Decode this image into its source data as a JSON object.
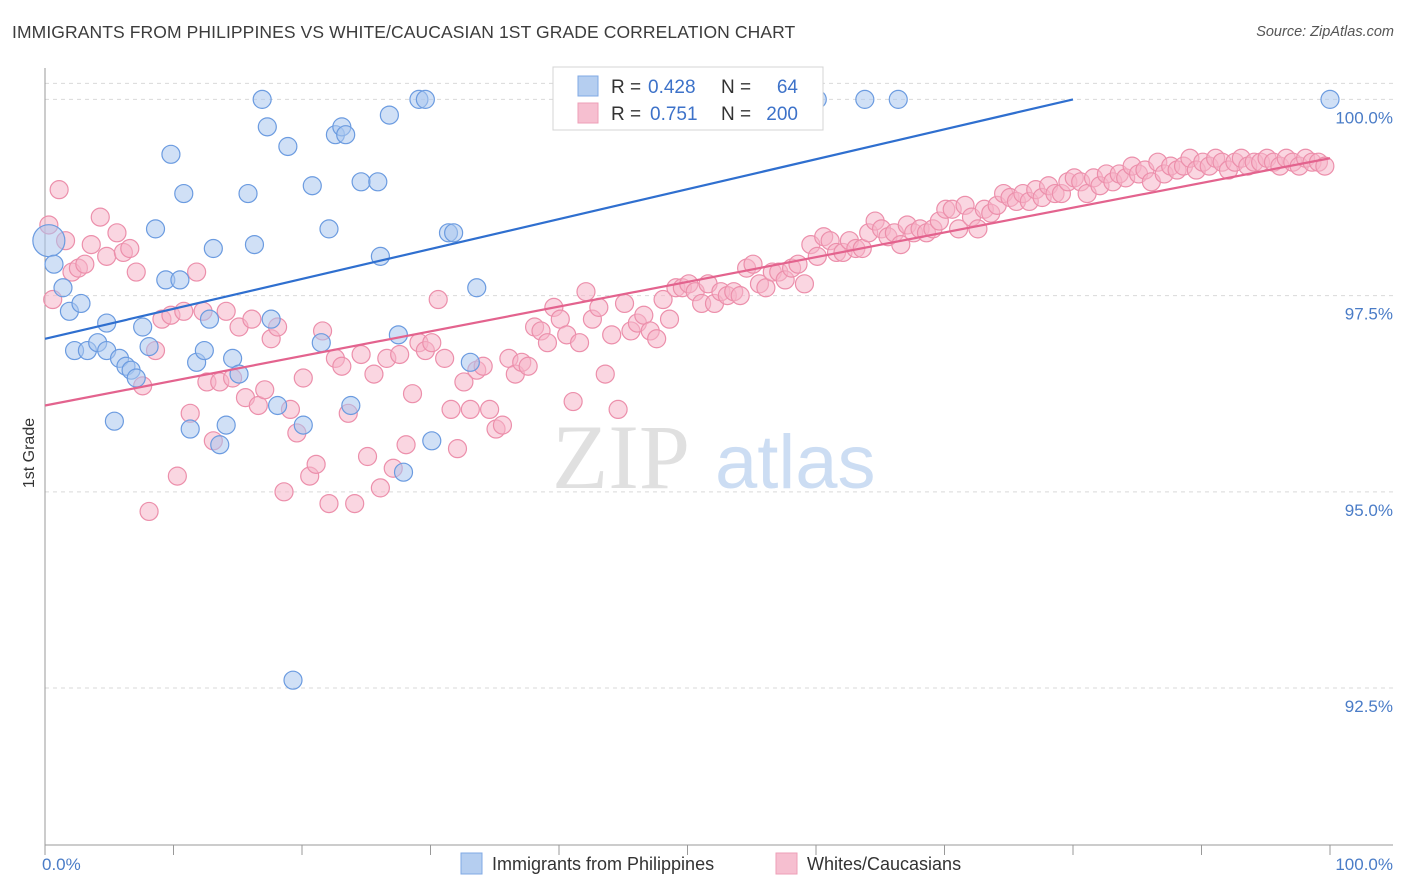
{
  "header": {
    "title": "IMMIGRANTS FROM PHILIPPINES VS WHITE/CAUCASIAN 1ST GRADE CORRELATION CHART",
    "source": "Source: ZipAtlas.com"
  },
  "watermark": {
    "zip": "ZIP",
    "atlas": "atlas"
  },
  "legend": {
    "rows": [
      {
        "r_label": "R =",
        "r_value": "0.428",
        "n_label": "N =",
        "n_value": "64"
      },
      {
        "r_label": "R =",
        "r_value": "0.751",
        "n_label": "N =",
        "n_value": "200"
      }
    ]
  },
  "colors": {
    "series_a_fill": "#a9c6ee",
    "series_a_stroke": "#6b9be0",
    "series_a_line": "#2f6fcf",
    "series_b_fill": "#f5b4c8",
    "series_b_stroke": "#ec8fab",
    "series_b_line": "#e3638e",
    "tick": "#4a7cc7",
    "grid": "#d9d9d9"
  },
  "chart_data": {
    "type": "scatter",
    "title": "IMMIGRANTS FROM PHILIPPINES VS WHITE/CAUCASIAN 1ST GRADE CORRELATION CHART",
    "xlabel": "",
    "ylabel": "1st Grade",
    "xlim": [
      0,
      100
    ],
    "ylim": [
      90.5,
      100.4
    ],
    "x_tick_labels": [
      "0.0%",
      "100.0%"
    ],
    "y_ticks": [
      92.5,
      95.0,
      97.5,
      100.0
    ],
    "y_tick_labels": [
      "92.5%",
      "95.0%",
      "97.5%",
      "100.0%"
    ],
    "grid": true,
    "legend_position": "bottom",
    "series": [
      {
        "name": "Immigrants from Philippines",
        "r": 0.428,
        "n": 64,
        "trend": {
          "x0": 0,
          "y0": 96.95,
          "x1": 80,
          "y1": 100.0
        },
        "points": [
          [
            0.3,
            98.2
          ],
          [
            0.7,
            97.9
          ],
          [
            1.4,
            97.6
          ],
          [
            1.9,
            97.3
          ],
          [
            2.3,
            96.8
          ],
          [
            2.8,
            97.4
          ],
          [
            3.3,
            96.8
          ],
          [
            4.1,
            96.9
          ],
          [
            4.8,
            96.8
          ],
          [
            4.8,
            97.15
          ],
          [
            5.4,
            95.9
          ],
          [
            5.8,
            96.7
          ],
          [
            6.3,
            96.6
          ],
          [
            6.7,
            96.55
          ],
          [
            7.1,
            96.45
          ],
          [
            7.6,
            97.1
          ],
          [
            8.1,
            96.85
          ],
          [
            8.6,
            98.35
          ],
          [
            9.4,
            97.7
          ],
          [
            9.8,
            99.3
          ],
          [
            10.5,
            97.7
          ],
          [
            10.8,
            98.8
          ],
          [
            11.3,
            95.8
          ],
          [
            11.8,
            96.65
          ],
          [
            12.4,
            96.8
          ],
          [
            12.8,
            97.2
          ],
          [
            13.1,
            98.1
          ],
          [
            13.6,
            95.6
          ],
          [
            14.1,
            95.85
          ],
          [
            14.6,
            96.7
          ],
          [
            15.1,
            96.5
          ],
          [
            15.8,
            98.8
          ],
          [
            16.3,
            98.15
          ],
          [
            16.9,
            100.0
          ],
          [
            17.3,
            99.65
          ],
          [
            17.6,
            97.2
          ],
          [
            18.1,
            96.1
          ],
          [
            18.9,
            99.4
          ],
          [
            19.3,
            92.6
          ],
          [
            20.1,
            95.85
          ],
          [
            20.8,
            98.9
          ],
          [
            21.5,
            96.9
          ],
          [
            22.1,
            98.35
          ],
          [
            22.6,
            99.55
          ],
          [
            23.1,
            99.65
          ],
          [
            23.4,
            99.55
          ],
          [
            23.8,
            96.1
          ],
          [
            24.6,
            98.95
          ],
          [
            25.9,
            98.95
          ],
          [
            26.1,
            98.0
          ],
          [
            26.8,
            99.8
          ],
          [
            27.5,
            97.0
          ],
          [
            27.9,
            95.25
          ],
          [
            29.1,
            100.0
          ],
          [
            29.6,
            100.0
          ],
          [
            30.1,
            95.65
          ],
          [
            31.4,
            98.3
          ],
          [
            31.8,
            98.3
          ],
          [
            33.1,
            96.65
          ],
          [
            33.6,
            97.6
          ],
          [
            60.1,
            100.0
          ],
          [
            63.8,
            100.0
          ],
          [
            66.4,
            100.0
          ],
          [
            100,
            100.0
          ]
        ]
      },
      {
        "name": "Whites/Caucasians",
        "r": 0.751,
        "n": 200,
        "trend": {
          "x0": 0,
          "y0": 96.1,
          "x1": 100,
          "y1": 99.25
        },
        "points": [
          [
            0.3,
            98.4
          ],
          [
            0.6,
            97.45
          ],
          [
            1.1,
            98.85
          ],
          [
            1.6,
            98.2
          ],
          [
            2.1,
            97.8
          ],
          [
            2.6,
            97.85
          ],
          [
            3.1,
            97.9
          ],
          [
            3.6,
            98.15
          ],
          [
            4.3,
            98.5
          ],
          [
            4.8,
            98.0
          ],
          [
            5.6,
            98.3
          ],
          [
            6.1,
            98.05
          ],
          [
            6.6,
            98.1
          ],
          [
            7.1,
            97.8
          ],
          [
            7.6,
            96.35
          ],
          [
            8.1,
            94.75
          ],
          [
            8.6,
            96.8
          ],
          [
            9.1,
            97.2
          ],
          [
            9.8,
            97.25
          ],
          [
            10.3,
            95.2
          ],
          [
            10.8,
            97.3
          ],
          [
            11.3,
            96.0
          ],
          [
            11.8,
            97.8
          ],
          [
            12.3,
            97.3
          ],
          [
            12.6,
            96.4
          ],
          [
            13.1,
            95.65
          ],
          [
            13.6,
            96.4
          ],
          [
            14.1,
            97.3
          ],
          [
            14.6,
            96.45
          ],
          [
            15.1,
            97.1
          ],
          [
            15.6,
            96.2
          ],
          [
            16.1,
            97.2
          ],
          [
            16.6,
            96.1
          ],
          [
            17.1,
            96.3
          ],
          [
            17.6,
            96.95
          ],
          [
            18.1,
            97.1
          ],
          [
            18.6,
            95.0
          ],
          [
            19.1,
            96.05
          ],
          [
            19.6,
            95.75
          ],
          [
            20.1,
            96.45
          ],
          [
            20.6,
            95.2
          ],
          [
            21.1,
            95.35
          ],
          [
            21.6,
            97.05
          ],
          [
            22.1,
            94.85
          ],
          [
            22.6,
            96.7
          ],
          [
            23.1,
            96.6
          ],
          [
            23.6,
            96.0
          ],
          [
            24.1,
            94.85
          ],
          [
            24.6,
            96.75
          ],
          [
            25.1,
            95.45
          ],
          [
            25.6,
            96.5
          ],
          [
            26.1,
            95.05
          ],
          [
            26.6,
            96.7
          ],
          [
            27.1,
            95.3
          ],
          [
            27.6,
            96.75
          ],
          [
            28.1,
            95.6
          ],
          [
            28.6,
            96.25
          ],
          [
            29.1,
            96.9
          ],
          [
            29.6,
            96.8
          ],
          [
            30.1,
            96.9
          ],
          [
            30.6,
            97.45
          ],
          [
            31.1,
            96.7
          ],
          [
            31.6,
            96.05
          ],
          [
            32.1,
            95.55
          ],
          [
            32.6,
            96.4
          ],
          [
            33.1,
            96.05
          ],
          [
            33.6,
            96.55
          ],
          [
            34.1,
            96.6
          ],
          [
            34.6,
            96.05
          ],
          [
            35.1,
            95.8
          ],
          [
            35.6,
            95.85
          ],
          [
            36.1,
            96.7
          ],
          [
            36.6,
            96.5
          ],
          [
            37.1,
            96.65
          ],
          [
            37.6,
            96.6
          ],
          [
            38.1,
            97.1
          ],
          [
            38.6,
            97.05
          ],
          [
            39.1,
            96.9
          ],
          [
            39.6,
            97.35
          ],
          [
            40.1,
            97.2
          ],
          [
            40.6,
            97.0
          ],
          [
            41.1,
            96.15
          ],
          [
            41.6,
            96.9
          ],
          [
            42.1,
            97.55
          ],
          [
            42.6,
            97.2
          ],
          [
            43.1,
            97.35
          ],
          [
            43.6,
            96.5
          ],
          [
            44.1,
            97.0
          ],
          [
            44.6,
            96.05
          ],
          [
            45.1,
            97.4
          ],
          [
            45.6,
            97.05
          ],
          [
            46.1,
            97.15
          ],
          [
            46.6,
            97.25
          ],
          [
            47.1,
            97.05
          ],
          [
            47.6,
            96.95
          ],
          [
            48.1,
            97.45
          ],
          [
            48.6,
            97.2
          ],
          [
            49.1,
            97.6
          ],
          [
            49.6,
            97.6
          ],
          [
            50.1,
            97.65
          ],
          [
            50.6,
            97.55
          ],
          [
            51.1,
            97.4
          ],
          [
            51.6,
            97.65
          ],
          [
            52.1,
            97.4
          ],
          [
            52.6,
            97.55
          ],
          [
            53.1,
            97.5
          ],
          [
            53.6,
            97.55
          ],
          [
            54.1,
            97.5
          ],
          [
            54.6,
            97.85
          ],
          [
            55.1,
            97.9
          ],
          [
            55.6,
            97.65
          ],
          [
            56.1,
            97.6
          ],
          [
            56.6,
            97.8
          ],
          [
            57.1,
            97.8
          ],
          [
            57.6,
            97.7
          ],
          [
            58.1,
            97.85
          ],
          [
            58.6,
            97.9
          ],
          [
            59.1,
            97.65
          ],
          [
            59.6,
            98.15
          ],
          [
            60.1,
            98.0
          ],
          [
            60.6,
            98.25
          ],
          [
            61.1,
            98.2
          ],
          [
            61.6,
            98.05
          ],
          [
            62.1,
            98.05
          ],
          [
            62.6,
            98.2
          ],
          [
            63.1,
            98.1
          ],
          [
            63.6,
            98.1
          ],
          [
            64.1,
            98.3
          ],
          [
            64.6,
            98.45
          ],
          [
            65.1,
            98.35
          ],
          [
            65.6,
            98.25
          ],
          [
            66.1,
            98.3
          ],
          [
            66.6,
            98.15
          ],
          [
            67.1,
            98.4
          ],
          [
            67.6,
            98.3
          ],
          [
            68.1,
            98.35
          ],
          [
            68.6,
            98.3
          ],
          [
            69.1,
            98.35
          ],
          [
            69.6,
            98.45
          ],
          [
            70.1,
            98.6
          ],
          [
            70.6,
            98.6
          ],
          [
            71.1,
            98.35
          ],
          [
            71.6,
            98.65
          ],
          [
            72.1,
            98.5
          ],
          [
            72.6,
            98.35
          ],
          [
            73.1,
            98.6
          ],
          [
            73.6,
            98.55
          ],
          [
            74.1,
            98.65
          ],
          [
            74.6,
            98.8
          ],
          [
            75.1,
            98.75
          ],
          [
            75.6,
            98.7
          ],
          [
            76.1,
            98.8
          ],
          [
            76.6,
            98.7
          ],
          [
            77.1,
            98.85
          ],
          [
            77.6,
            98.75
          ],
          [
            78.1,
            98.9
          ],
          [
            78.6,
            98.8
          ],
          [
            79.1,
            98.8
          ],
          [
            79.6,
            98.95
          ],
          [
            80.1,
            99.0
          ],
          [
            80.6,
            98.95
          ],
          [
            81.1,
            98.8
          ],
          [
            81.6,
            99.0
          ],
          [
            82.1,
            98.9
          ],
          [
            82.6,
            99.05
          ],
          [
            83.1,
            98.95
          ],
          [
            83.6,
            99.05
          ],
          [
            84.1,
            99.0
          ],
          [
            84.6,
            99.15
          ],
          [
            85.1,
            99.05
          ],
          [
            85.6,
            99.1
          ],
          [
            86.1,
            98.95
          ],
          [
            86.6,
            99.2
          ],
          [
            87.1,
            99.05
          ],
          [
            87.6,
            99.15
          ],
          [
            88.1,
            99.1
          ],
          [
            88.6,
            99.15
          ],
          [
            89.1,
            99.25
          ],
          [
            89.6,
            99.1
          ],
          [
            90.1,
            99.2
          ],
          [
            90.6,
            99.15
          ],
          [
            91.1,
            99.25
          ],
          [
            91.6,
            99.2
          ],
          [
            92.1,
            99.1
          ],
          [
            92.6,
            99.2
          ],
          [
            93.1,
            99.25
          ],
          [
            93.6,
            99.15
          ],
          [
            94.1,
            99.2
          ],
          [
            94.6,
            99.2
          ],
          [
            95.1,
            99.25
          ],
          [
            95.6,
            99.2
          ],
          [
            96.1,
            99.15
          ],
          [
            96.6,
            99.25
          ],
          [
            97.1,
            99.2
          ],
          [
            97.6,
            99.15
          ],
          [
            98.1,
            99.25
          ],
          [
            98.6,
            99.2
          ],
          [
            99.1,
            99.2
          ],
          [
            99.6,
            99.15
          ]
        ]
      }
    ],
    "series_labels": [
      "Immigrants from Philippines",
      "Whites/Caucasians"
    ]
  }
}
